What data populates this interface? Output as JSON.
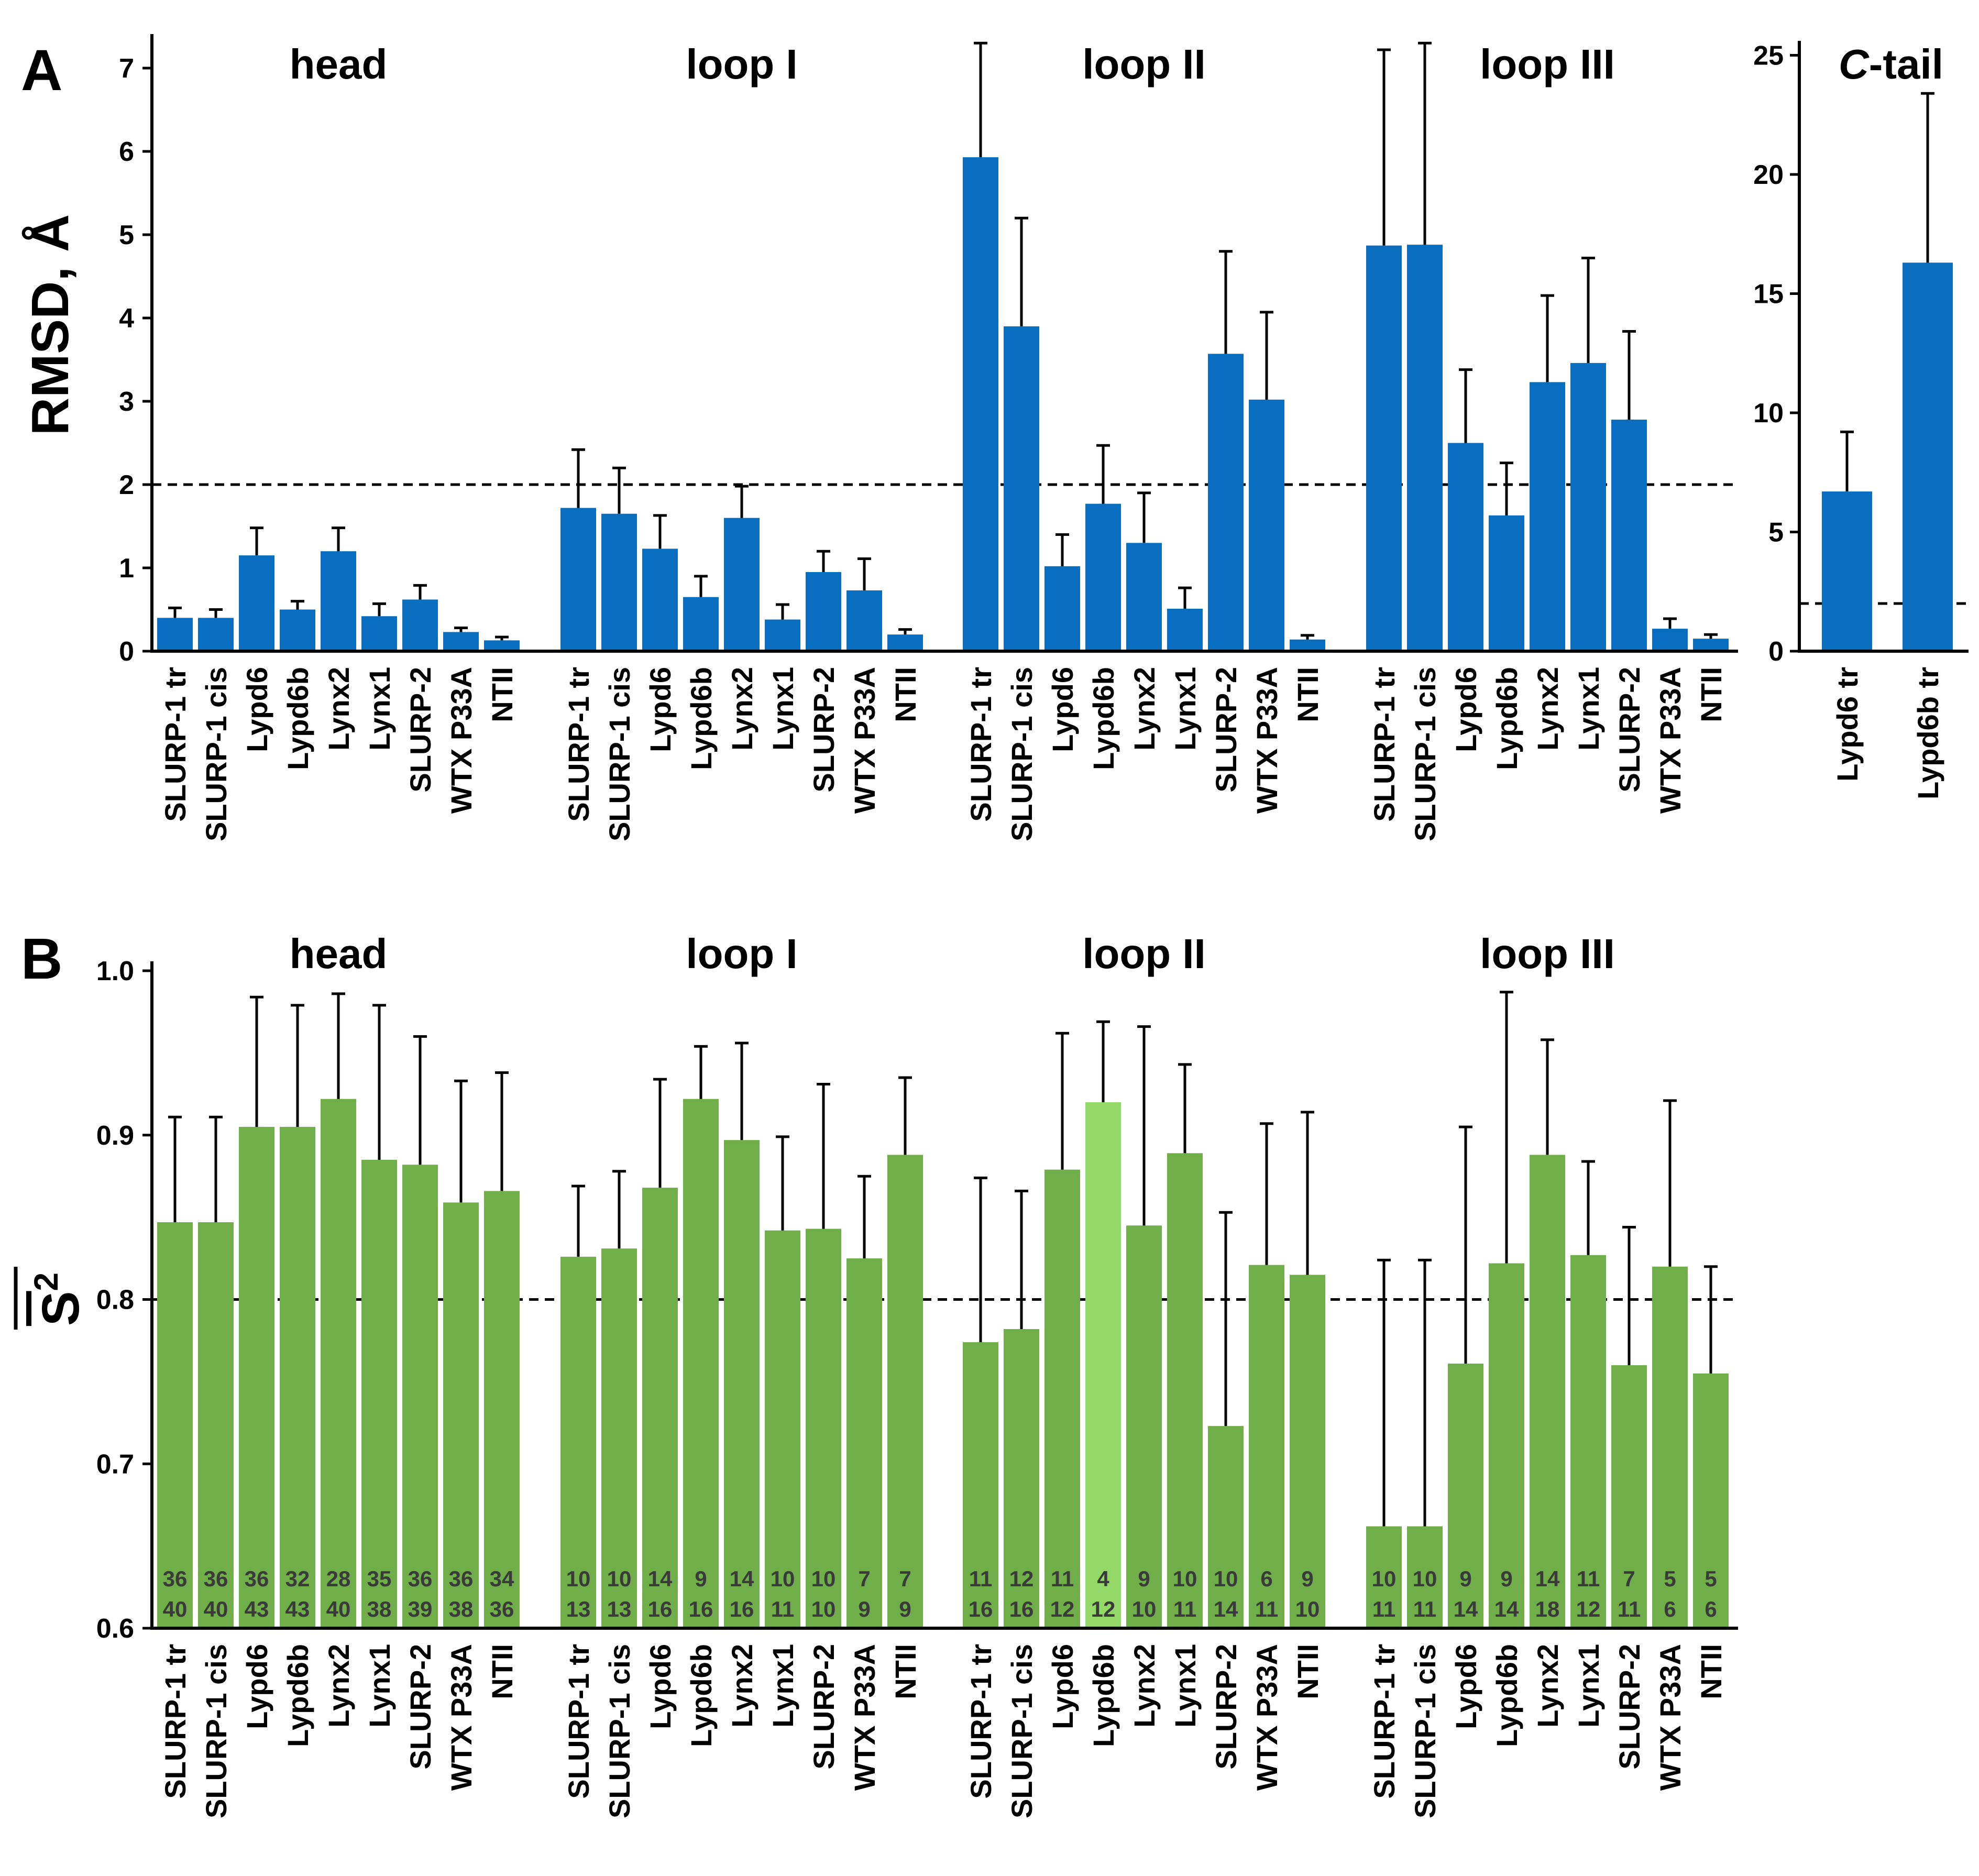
{
  "colors": {
    "rmsd_bar": "#0a6ec0",
    "s2_bar": "#6fae49",
    "s2_highlight_bar": "#94d968",
    "axis": "#000000",
    "label_text": "#3a3a3a"
  },
  "chart_data": [
    {
      "type": "bar",
      "panel": "A",
      "ylabel": "RMSD, Å",
      "ylim": [
        0,
        7.3
      ],
      "yticks": [
        0,
        1,
        2,
        3,
        4,
        5,
        6,
        7
      ],
      "reference_line": 2,
      "categories": [
        "SLURP-1 tr",
        "SLURP-1 cis",
        "Lypd6",
        "Lypd6b",
        "Lynx2",
        "Lynx1",
        "SLURP-2",
        "WTX P33A",
        "NTII"
      ],
      "groups": [
        {
          "name": "head",
          "values": [
            0.4,
            0.4,
            1.15,
            0.5,
            1.2,
            0.42,
            0.62,
            0.23,
            0.13
          ],
          "errors": [
            0.12,
            0.1,
            0.33,
            0.1,
            0.28,
            0.15,
            0.17,
            0.05,
            0.04
          ]
        },
        {
          "name": "loop I",
          "values": [
            1.72,
            1.65,
            1.23,
            0.65,
            1.6,
            0.38,
            0.95,
            0.73,
            0.2
          ],
          "errors": [
            0.7,
            0.55,
            0.4,
            0.25,
            0.38,
            0.18,
            0.25,
            0.38,
            0.06
          ]
        },
        {
          "name": "loop II",
          "values": [
            5.93,
            3.9,
            1.02,
            1.77,
            1.3,
            0.51,
            3.57,
            3.02,
            0.14
          ],
          "errors": [
            1.37,
            1.3,
            0.38,
            0.7,
            0.6,
            0.25,
            1.23,
            1.05,
            0.05
          ]
        },
        {
          "name": "loop III",
          "values": [
            4.87,
            4.88,
            2.5,
            1.63,
            3.23,
            3.46,
            2.78,
            0.27,
            0.15
          ],
          "errors": [
            2.35,
            2.42,
            0.88,
            0.63,
            1.04,
            1.26,
            1.06,
            0.12,
            0.05
          ]
        }
      ]
    },
    {
      "type": "bar",
      "panel": "A",
      "title_prefix": "C",
      "title": "-tail",
      "ylim": [
        0,
        25.5
      ],
      "yticks": [
        0,
        5,
        10,
        15,
        20,
        25
      ],
      "reference_line": 2,
      "categories": [
        "Lypd6 tr",
        "Lypd6b tr"
      ],
      "values": [
        6.7,
        16.3
      ],
      "errors": [
        2.5,
        7.1
      ]
    },
    {
      "type": "bar",
      "panel": "B",
      "ylabel": "S",
      "ylabel_sup": "2",
      "ylim": [
        0.6,
        1.0
      ],
      "yticks": [
        "0.6",
        "0.7",
        "0.8",
        "0.9",
        "1.0"
      ],
      "reference_line": 0.8,
      "categories": [
        "SLURP-1 tr",
        "SLURP-1 cis",
        "Lypd6",
        "Lypd6b",
        "Lynx2",
        "Lynx1",
        "SLURP-2",
        "WTX P33A",
        "NTII"
      ],
      "groups": [
        {
          "name": "head",
          "values": [
            0.847,
            0.847,
            0.905,
            0.905,
            0.922,
            0.885,
            0.882,
            0.859,
            0.866
          ],
          "errors": [
            0.064,
            0.064,
            0.079,
            0.074,
            0.064,
            0.094,
            0.078,
            0.074,
            0.072
          ],
          "n_top": [
            "36",
            "36",
            "36",
            "32",
            "28",
            "35",
            "36",
            "36",
            "34"
          ],
          "n_bottom": [
            "40",
            "40",
            "43",
            "43",
            "40",
            "38",
            "39",
            "38",
            "36"
          ],
          "highlight": []
        },
        {
          "name": "loop I",
          "values": [
            0.826,
            0.831,
            0.868,
            0.922,
            0.897,
            0.842,
            0.843,
            0.825,
            0.888
          ],
          "errors": [
            0.043,
            0.047,
            0.066,
            0.032,
            0.059,
            0.057,
            0.088,
            0.05,
            0.047
          ],
          "n_top": [
            "10",
            "10",
            "14",
            "9",
            "14",
            "10",
            "10",
            "7",
            "7"
          ],
          "n_bottom": [
            "13",
            "13",
            "16",
            "16",
            "16",
            "11",
            "10",
            "9",
            "9"
          ],
          "highlight": []
        },
        {
          "name": "loop II",
          "values": [
            0.774,
            0.782,
            0.879,
            0.92,
            0.845,
            0.889,
            0.723,
            0.821,
            0.815
          ],
          "errors": [
            0.1,
            0.084,
            0.083,
            0.049,
            0.121,
            0.054,
            0.13,
            0.086,
            0.099
          ],
          "n_top": [
            "11",
            "12",
            "11",
            "4",
            "9",
            "10",
            "10",
            "6",
            "9"
          ],
          "n_bottom": [
            "16",
            "16",
            "12",
            "12",
            "10",
            "11",
            "14",
            "11",
            "10"
          ],
          "highlight": [
            3
          ]
        },
        {
          "name": "loop III",
          "values": [
            0.662,
            0.662,
            0.761,
            0.822,
            0.888,
            0.827,
            0.76,
            0.82,
            0.755
          ],
          "errors": [
            0.162,
            0.162,
            0.144,
            0.165,
            0.07,
            0.057,
            0.084,
            0.101,
            0.065
          ],
          "n_top": [
            "10",
            "10",
            "9",
            "9",
            "14",
            "11",
            "7",
            "5",
            "5"
          ],
          "n_bottom": [
            "11",
            "11",
            "14",
            "14",
            "18",
            "12",
            "11",
            "6",
            "6"
          ],
          "highlight": []
        }
      ]
    }
  ]
}
